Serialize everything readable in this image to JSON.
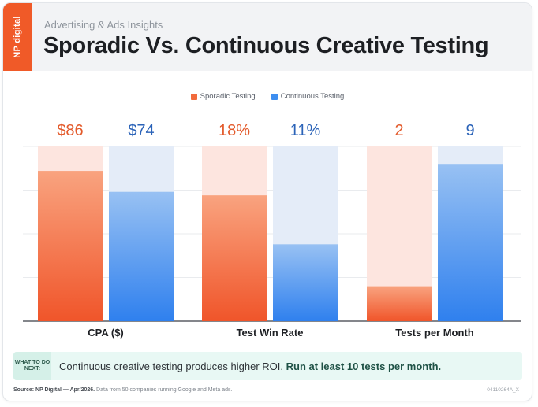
{
  "header": {
    "logo_text": "NP digital",
    "kicker": "Advertising & Ads Insights",
    "title": "Sporadic Vs. Continuous Creative Testing"
  },
  "colors": {
    "sporadic": "#f26b3c",
    "sporadic_light": "#fde5df",
    "continuous": "#3d8ef0",
    "continuous_light": "#e4ecf8",
    "sporadic_label": "#e35a2b",
    "continuous_label": "#2b63b8"
  },
  "chart_data": {
    "type": "bar",
    "categories": [
      "CPA ($)",
      "Test Win Rate",
      "Tests per Month"
    ],
    "series": [
      {
        "name": "Sporadic Testing",
        "values": [
          86,
          18,
          2
        ],
        "labels": [
          "$86",
          "18%",
          "2"
        ]
      },
      {
        "name": "Continuous Testing",
        "values": [
          74,
          11,
          9
        ],
        "labels": [
          "$74",
          "11%",
          "9"
        ]
      }
    ],
    "value_scale_max": [
      100,
      25,
      10
    ],
    "legend": "top-center",
    "grid": true
  },
  "callout": {
    "tag": "WHAT TO DO NEXT:",
    "text": "Continuous creative testing produces higher ROI.",
    "emphasis": "Run at least 10 tests per month."
  },
  "footer": {
    "source_label": "Source: NP Digital — Apr/2026.",
    "source_text": "Data from 50 companies running Google and Meta ads.",
    "code": "04110264A_X"
  }
}
